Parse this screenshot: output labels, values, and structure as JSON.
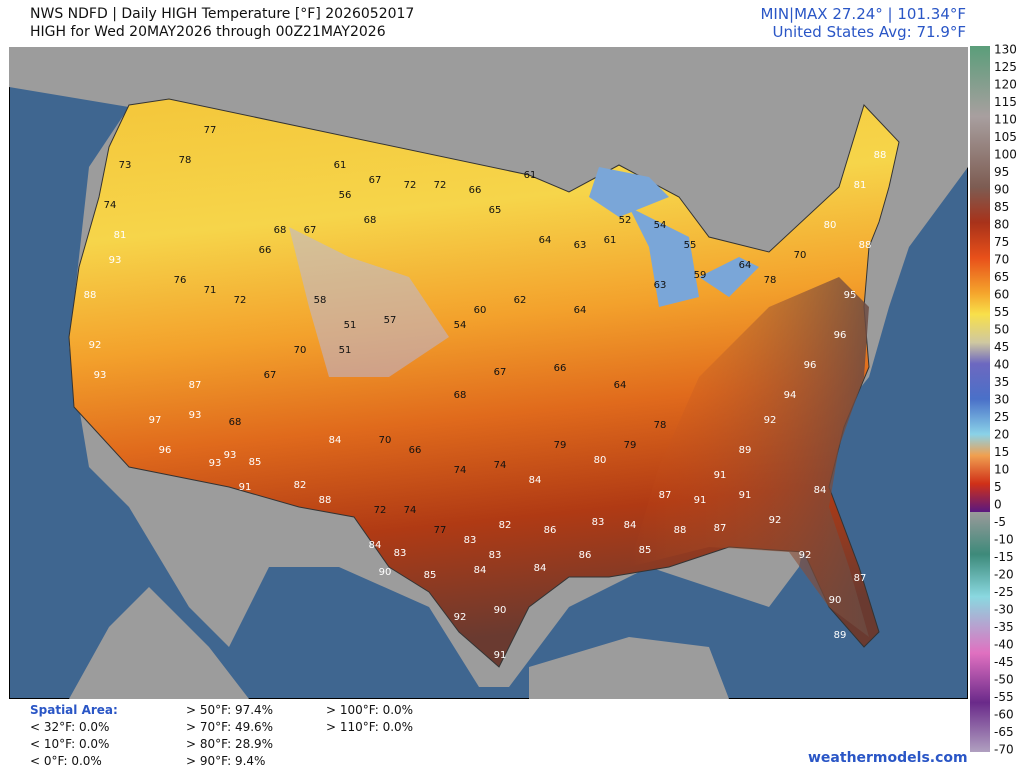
{
  "header": {
    "title": "NWS NDFD | Daily HIGH Temperature [°F]  2026052017",
    "subtitle": "HIGH for Wed 20MAY2026 through 00Z21MAY2026",
    "minmax": "MIN|MAX 27.24° | 101.34°F",
    "average": "United States Avg: 71.9°F"
  },
  "colorbar": {
    "labels": [
      "130",
      "125",
      "120",
      "115",
      "110",
      "105",
      "100",
      "95",
      "90",
      "85",
      "80",
      "75",
      "70",
      "65",
      "60",
      "55",
      "50",
      "45",
      "40",
      "35",
      "30",
      "25",
      "20",
      "15",
      "10",
      "5",
      "0",
      "-5",
      "-10",
      "-15",
      "-20",
      "-25",
      "-30",
      "-35",
      "-40",
      "-45",
      "-50",
      "-55",
      "-60",
      "-65",
      "-70"
    ]
  },
  "map_labels": [
    77,
    78,
    73,
    74,
    81,
    93,
    88,
    92,
    93,
    97,
    96,
    93,
    91,
    93,
    85,
    87,
    93,
    68,
    76,
    71,
    72,
    66,
    68,
    67,
    61,
    56,
    68,
    67,
    72,
    72,
    66,
    65,
    61,
    64,
    63,
    61,
    52,
    54,
    55,
    63,
    59,
    64,
    78,
    70,
    80,
    81,
    88,
    88,
    95,
    96,
    96,
    94,
    92,
    89,
    91,
    91,
    91,
    92,
    92,
    90,
    89,
    87,
    84,
    78,
    79,
    80,
    79,
    84,
    74,
    74,
    66,
    70,
    84,
    82,
    88,
    72,
    74,
    77,
    83,
    82,
    86,
    83,
    84,
    87,
    88,
    87,
    68,
    67,
    66,
    64,
    64,
    62,
    60,
    54,
    57,
    51,
    51,
    58,
    70,
    67,
    84,
    83,
    90,
    85,
    84,
    83,
    84,
    86,
    92,
    90,
    91,
    85
  ],
  "footer": {
    "spatial_area": "Spatial Area:",
    "col1": [
      "< 32°F: 0.0%",
      "< 10°F: 0.0%",
      "< 0°F: 0.0%"
    ],
    "col2": [
      "> 50°F: 97.4%",
      "> 70°F: 49.6%",
      "> 80°F: 28.9%",
      "> 90°F: 9.4%"
    ],
    "col3": [
      "> 100°F: 0.0%",
      "> 110°F: 0.0%"
    ],
    "credit": "weathermodels.com"
  }
}
